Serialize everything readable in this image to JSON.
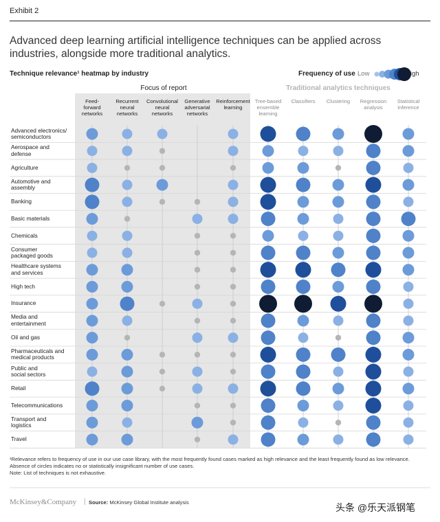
{
  "header": {
    "exhibit": "Exhibit 2",
    "title": "Advanced deep learning artificial intelligence techniques can be applied across industries, alongside more traditional analytics.",
    "subtitle": "Technique relevance¹ heatmap by industry"
  },
  "legend": {
    "title": "Frequency of use",
    "low": "Low",
    "high": "High"
  },
  "groups": {
    "focus": "Focus of report",
    "traditional": "Traditional analytics techniques"
  },
  "footnotes": {
    "note1": "¹Relevance refers to frequency of use in our use case library, with the most frequently found cases marked as high relevance and the least frequently found as low relevance. Absence of circles indicates no or statistically insignificant number of use cases.",
    "note2": "Note: List of techniques is not exhaustive."
  },
  "source": {
    "brand": "McKinsey&Company",
    "separator": "|",
    "label": "Source:",
    "text": "McKinsey Global Institute analysis"
  },
  "watermark": "头条 @乐天派钢笔",
  "colors": {
    "level_0": "#b5b5b5",
    "level_1": "#a6c2ea",
    "level_2": "#8bb1e4",
    "level_3": "#6c9bd9",
    "level_4": "#4f82c9",
    "level_5": "#1f4f9b",
    "level_6": "#0f1c33",
    "focus_band": "#e6e6e6"
  },
  "chart_data": {
    "type": "heatmap",
    "title": "Technique relevance¹ heatmap by industry",
    "scale": "0 = grey dot (minimal), 1 (low) … 6 (high); null = no circle",
    "columns": [
      {
        "label": "Feed-\nforward\nnetworks",
        "group": "focus"
      },
      {
        "label": "Recurrent\nneural\nnetworks",
        "group": "focus"
      },
      {
        "label": "Convolutional\nneural\nnetworks",
        "group": "focus"
      },
      {
        "label": "Generative\nadversarial\nnetworks",
        "group": "focus"
      },
      {
        "label": "Reinforcement\nlearning",
        "group": "focus"
      },
      {
        "label": "Tree-based\nensemble\nlearning",
        "group": "traditional"
      },
      {
        "label": "Classifiers",
        "group": "traditional"
      },
      {
        "label": "Clustering",
        "group": "traditional"
      },
      {
        "label": "Regression\nanalysis",
        "group": "traditional"
      },
      {
        "label": "Statistical\ninference",
        "group": "traditional"
      }
    ],
    "rows": [
      {
        "label": "Advanced electronics/\nsemiconductors",
        "values": [
          3,
          2,
          2,
          null,
          2,
          5,
          4,
          3,
          6,
          3
        ]
      },
      {
        "label": "Aerospace and\ndefense",
        "values": [
          2,
          2,
          0,
          null,
          2,
          3,
          2,
          2,
          4,
          3
        ]
      },
      {
        "label": "Agriculture",
        "values": [
          2,
          0,
          0,
          null,
          0,
          3,
          3,
          0,
          4,
          2
        ]
      },
      {
        "label": "Automotive and\nassembly",
        "values": [
          4,
          2,
          3,
          null,
          2,
          5,
          4,
          3,
          5,
          3
        ]
      },
      {
        "label": "Banking",
        "values": [
          4,
          2,
          0,
          0,
          2,
          5,
          3,
          3,
          4,
          2
        ]
      },
      {
        "label": "Basic materials",
        "values": [
          3,
          0,
          null,
          2,
          2,
          4,
          3,
          2,
          4,
          4
        ]
      },
      {
        "label": "Chemicals",
        "values": [
          2,
          2,
          null,
          0,
          0,
          3,
          2,
          2,
          4,
          3
        ]
      },
      {
        "label": "Consumer\npackaged goods",
        "values": [
          2,
          2,
          null,
          0,
          0,
          4,
          4,
          3,
          4,
          3
        ]
      },
      {
        "label": "Healthcare systems\nand services",
        "values": [
          3,
          3,
          null,
          0,
          0,
          5,
          5,
          4,
          5,
          3
        ]
      },
      {
        "label": "High tech",
        "values": [
          3,
          3,
          null,
          0,
          0,
          4,
          4,
          3,
          4,
          2
        ]
      },
      {
        "label": "Insurance",
        "values": [
          3,
          4,
          0,
          2,
          0,
          6,
          6,
          5,
          6,
          2
        ]
      },
      {
        "label": "Media and\nentertainment",
        "values": [
          3,
          2,
          null,
          0,
          0,
          4,
          3,
          2,
          4,
          2
        ]
      },
      {
        "label": "Oil and gas",
        "values": [
          3,
          0,
          null,
          2,
          2,
          4,
          2,
          0,
          4,
          3
        ]
      },
      {
        "label": "Pharmaceuticals and\nmedical products",
        "values": [
          3,
          3,
          0,
          0,
          0,
          5,
          4,
          4,
          5,
          3
        ]
      },
      {
        "label": "Public and\nsocial sectors",
        "values": [
          2,
          3,
          0,
          2,
          0,
          4,
          4,
          2,
          5,
          2
        ]
      },
      {
        "label": "Retail",
        "values": [
          4,
          3,
          0,
          2,
          2,
          5,
          4,
          3,
          5,
          3
        ]
      },
      {
        "label": "Telecommunications",
        "values": [
          3,
          3,
          null,
          0,
          0,
          4,
          3,
          2,
          5,
          2
        ]
      },
      {
        "label": "Transport and\nlogistics",
        "values": [
          3,
          2,
          null,
          3,
          0,
          4,
          2,
          0,
          4,
          2
        ]
      },
      {
        "label": "Travel",
        "values": [
          3,
          3,
          null,
          0,
          2,
          4,
          3,
          2,
          4,
          2
        ]
      }
    ]
  }
}
